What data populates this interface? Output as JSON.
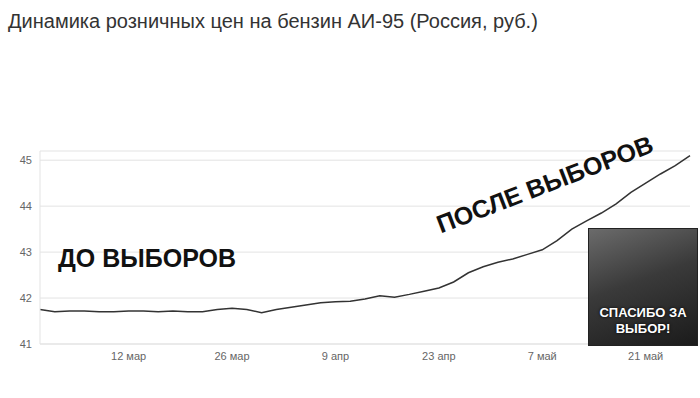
{
  "chart_data": {
    "type": "line",
    "title": "Динамика розничных цен на бензин АИ-95 (Россия, руб.)",
    "categories": [
      null,
      null,
      null,
      null,
      null,
      null,
      "12 мар",
      null,
      null,
      null,
      null,
      null,
      null,
      "26 мар",
      null,
      null,
      null,
      null,
      null,
      null,
      "9 апр",
      null,
      null,
      null,
      null,
      null,
      null,
      "23 апр",
      null,
      null,
      null,
      null,
      null,
      null,
      "7 май",
      null,
      null,
      null,
      null,
      null,
      null,
      "21 май",
      null,
      null,
      null
    ],
    "values": [
      41.75,
      41.7,
      41.72,
      41.72,
      41.7,
      41.7,
      41.72,
      41.72,
      41.7,
      41.72,
      41.7,
      41.7,
      41.75,
      41.78,
      41.75,
      41.68,
      41.75,
      41.8,
      41.85,
      41.9,
      41.92,
      41.93,
      41.98,
      42.05,
      42.02,
      42.08,
      42.15,
      42.22,
      42.35,
      42.55,
      42.68,
      42.78,
      42.85,
      42.95,
      43.05,
      43.25,
      43.5,
      43.68,
      43.85,
      44.05,
      44.3,
      44.5,
      44.7,
      44.88,
      45.1
    ],
    "color": "#333333",
    "ylim": [
      41,
      45.2
    ],
    "yticks": [
      41,
      42,
      43,
      44,
      45
    ],
    "grid": true,
    "annotations": [
      {
        "text": "ДО ВЫБОРОВ"
      },
      {
        "text": "ПОСЛЕ ВЫБОРОВ"
      },
      {
        "text": "СПАСИБО ЗА ВЫБОР!"
      }
    ]
  }
}
